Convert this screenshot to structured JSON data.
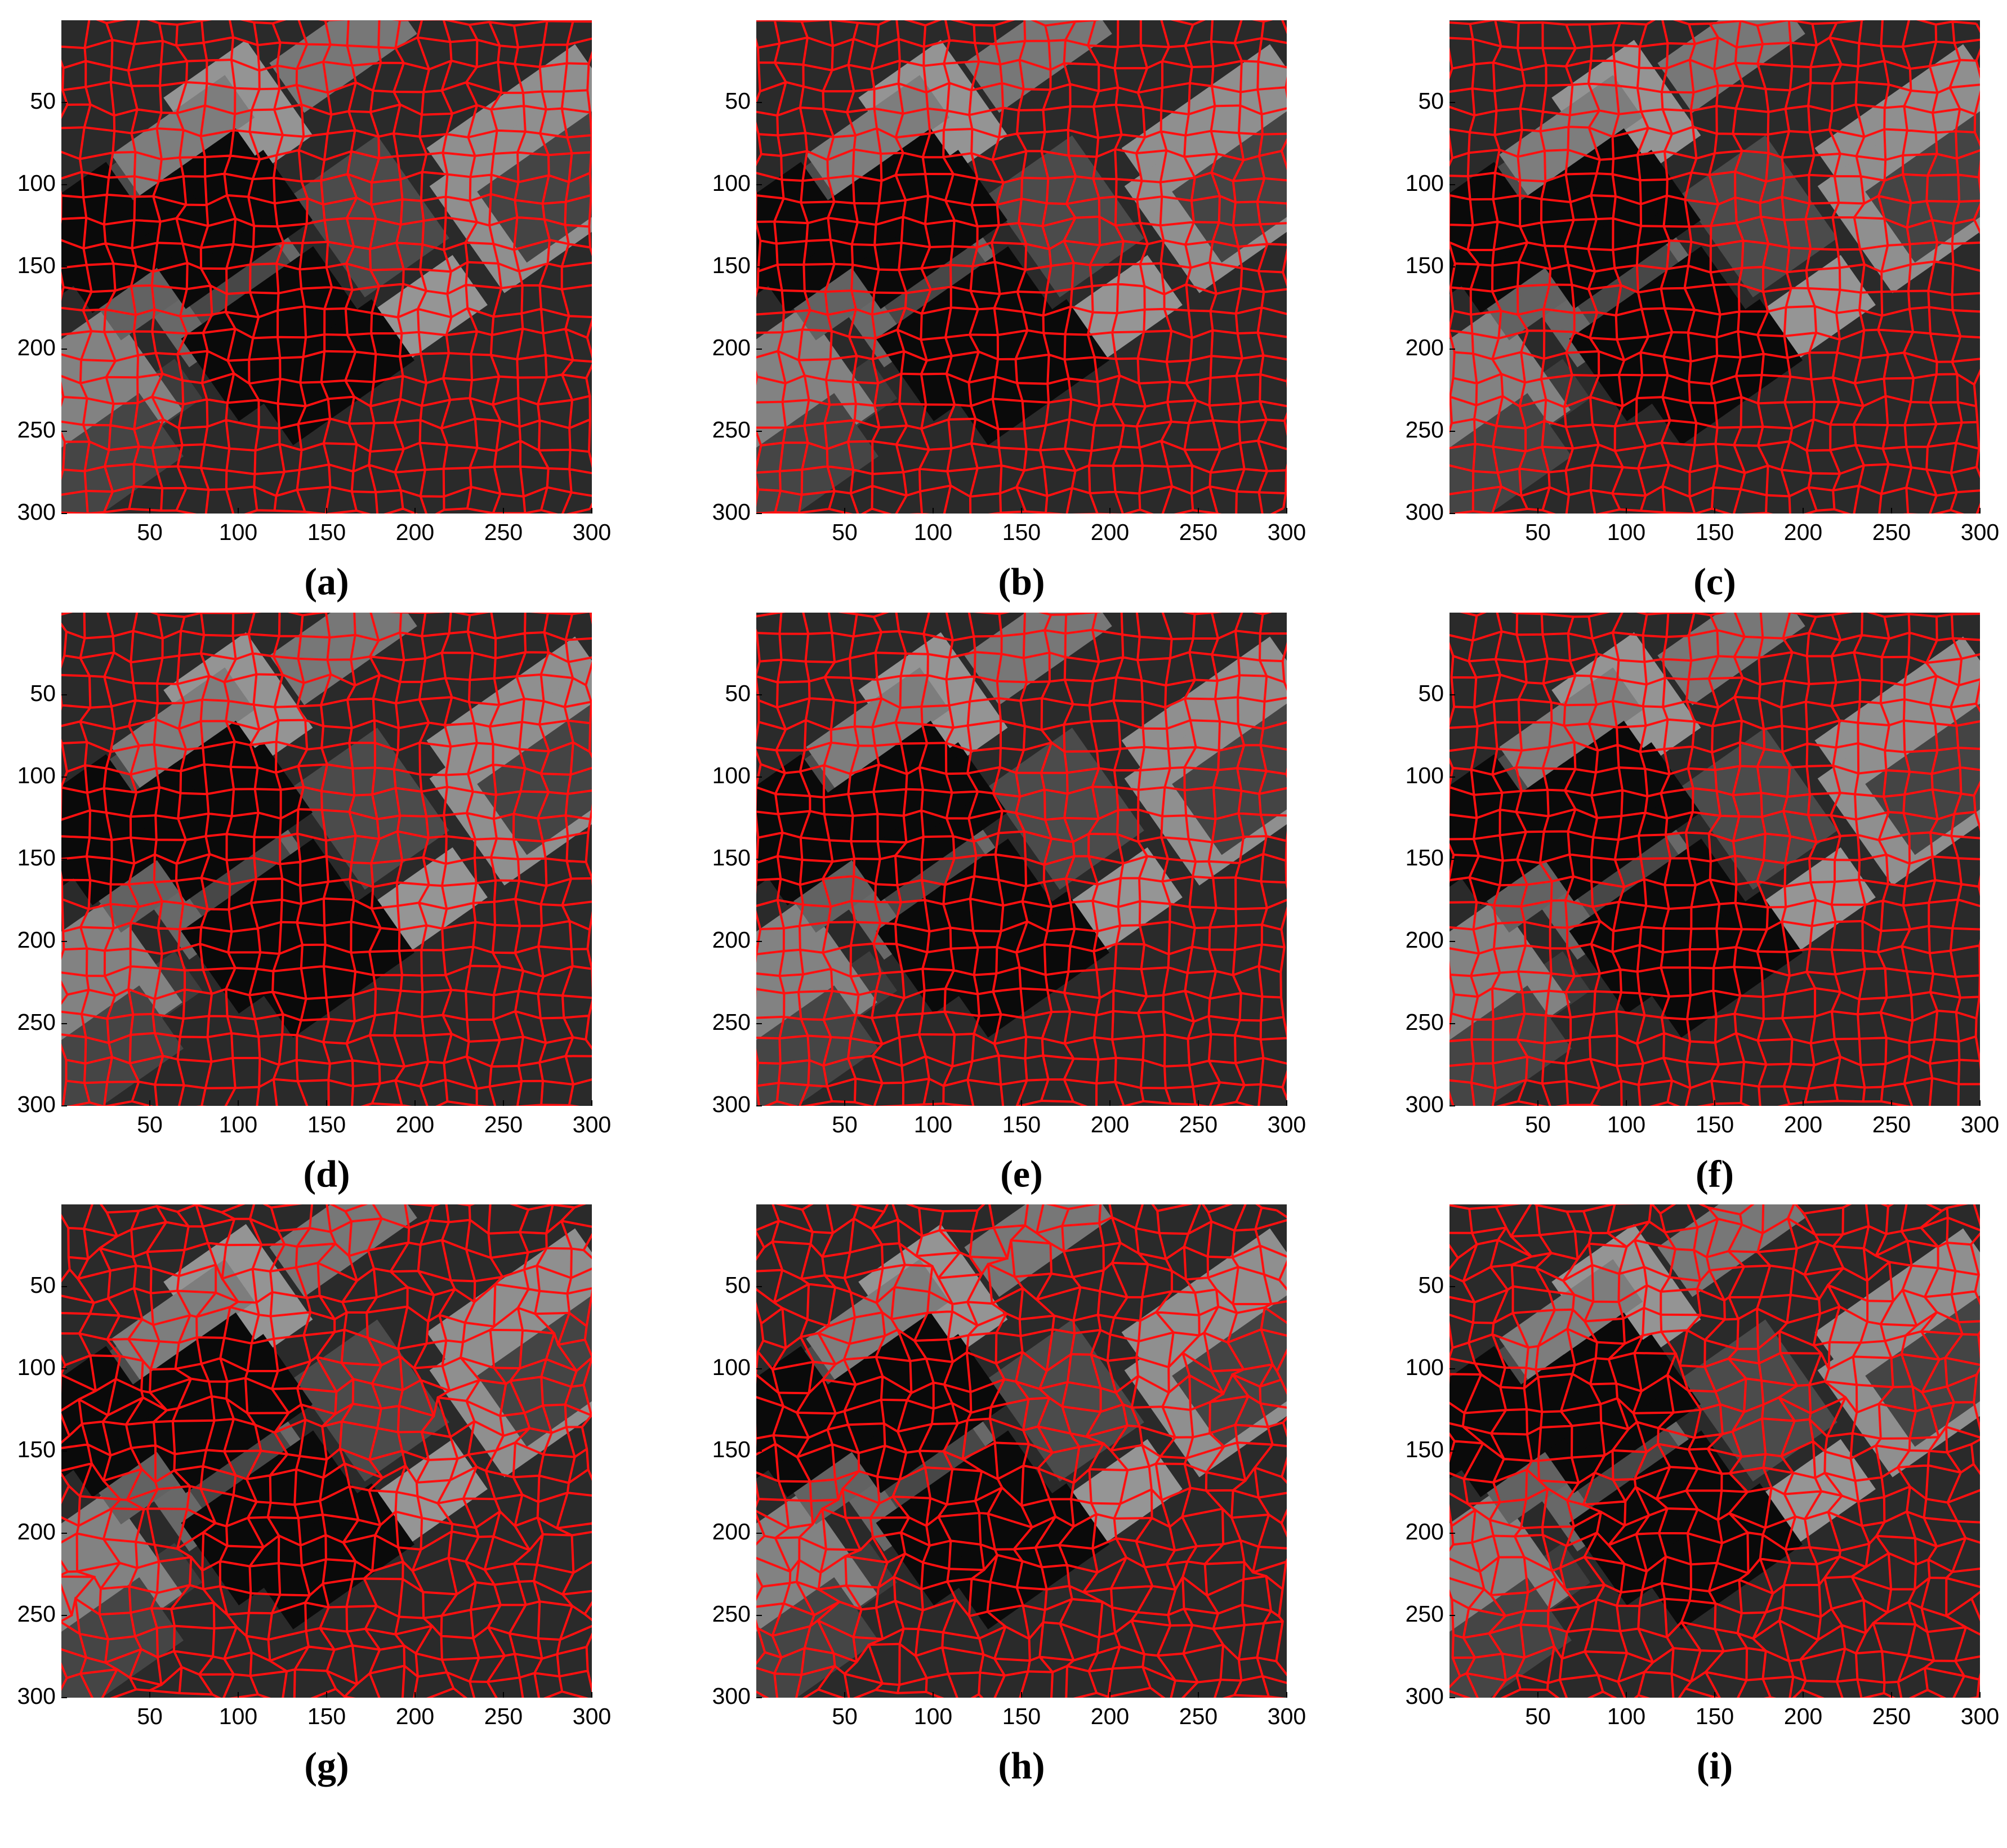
{
  "axes": {
    "xlim": [
      0,
      300
    ],
    "ylim": [
      0,
      300
    ],
    "xticks": [
      50,
      100,
      150,
      200,
      250,
      300
    ],
    "yticks": [
      50,
      100,
      150,
      200,
      250,
      300
    ]
  },
  "panels": [
    {
      "label": "(a)"
    },
    {
      "label": "(b)"
    },
    {
      "label": "(c)"
    },
    {
      "label": "(d)"
    },
    {
      "label": "(e)"
    },
    {
      "label": "(f)"
    },
    {
      "label": "(g)"
    },
    {
      "label": "(h)"
    },
    {
      "label": "(i)"
    }
  ]
}
